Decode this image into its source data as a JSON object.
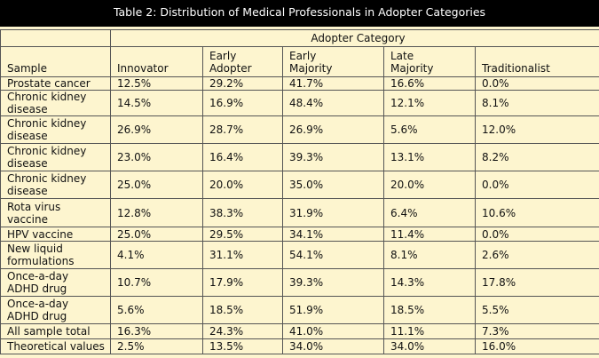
{
  "title": "Table 2: Distribution of Medical Professionals in Adopter Categories",
  "table": {
    "group_header": "Adopter Category",
    "columns": [
      "Sample",
      "Innovator",
      "Early Adopter",
      "Early Majority",
      "Late Majority",
      "Traditionalist"
    ],
    "rows": [
      [
        "Prostate cancer",
        "12.5%",
        "29.2%",
        "41.7%",
        "16.6%",
        "0.0%"
      ],
      [
        "Chronic kidney disease",
        "14.5%",
        "16.9%",
        "48.4%",
        "12.1%",
        "8.1%"
      ],
      [
        "Chronic kidney disease",
        "26.9%",
        "28.7%",
        "26.9%",
        "5.6%",
        "12.0%"
      ],
      [
        "Chronic kidney disease",
        "23.0%",
        "16.4%",
        "39.3%",
        "13.1%",
        "8.2%"
      ],
      [
        "Chronic kidney disease",
        "25.0%",
        "20.0%",
        "35.0%",
        "20.0%",
        "0.0%"
      ],
      [
        "Rota virus vaccine",
        "12.8%",
        "38.3%",
        "31.9%",
        "6.4%",
        "10.6%"
      ],
      [
        "HPV vaccine",
        "25.0%",
        "29.5%",
        "34.1%",
        "11.4%",
        "0.0%"
      ],
      [
        "New liquid formulations",
        "4.1%",
        "31.1%",
        "54.1%",
        "8.1%",
        "2.6%"
      ],
      [
        "Once-a-day ADHD drug",
        "10.7%",
        "17.9%",
        "39.3%",
        "14.3%",
        "17.8%"
      ],
      [
        "Once-a-day ADHD drug",
        "5.6%",
        "18.5%",
        "51.9%",
        "18.5%",
        "5.5%"
      ],
      [
        "All sample total",
        "16.3%",
        "24.3%",
        "41.0%",
        "11.1%",
        "7.3%"
      ],
      [
        "Theoretical values",
        "2.5%",
        "13.5%",
        "34.0%",
        "34.0%",
        "16.0%"
      ]
    ]
  }
}
